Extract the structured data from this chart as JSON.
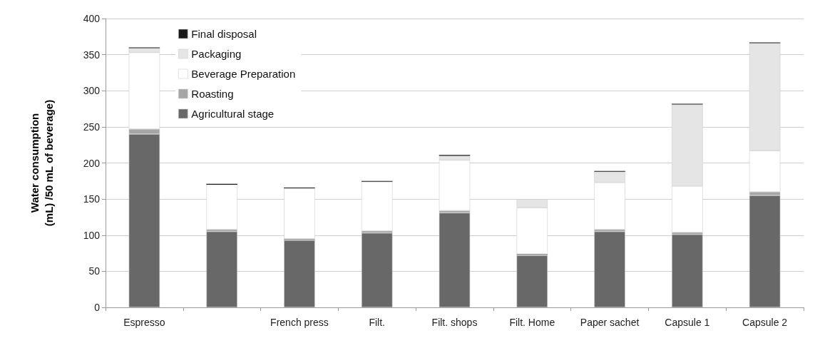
{
  "chart_data": {
    "type": "bar",
    "stacked": true,
    "ylabel": "Water consumption\n(mL) /50 mL of beverage)",
    "categories": [
      "Espresso",
      null,
      "French press",
      "Filt.",
      "Filt. shops",
      "Filt. Home",
      "Paper sachet",
      "Capsule 1",
      "Capsule 2"
    ],
    "series": [
      {
        "name": "Agricultural stage",
        "color": "#686868",
        "values": [
          240,
          105,
          93,
          103,
          131,
          72,
          105,
          101,
          155
        ]
      },
      {
        "name": "Roasting",
        "color": "#a6a6a6",
        "values": [
          7,
          3,
          2,
          3,
          3,
          2,
          3,
          3,
          5
        ]
      },
      {
        "name": "Beverage Preparation",
        "color": "#ffffff",
        "values": [
          106,
          62,
          70,
          68,
          70,
          64,
          65,
          64,
          57
        ]
      },
      {
        "name": "Packaging",
        "color": "#e5e5e5",
        "values": [
          6,
          0,
          0,
          0,
          6,
          12,
          15,
          113,
          149
        ]
      },
      {
        "name": "Final disposal",
        "color": "#1a1a1a",
        "values": [
          1,
          1,
          1,
          1,
          1,
          0,
          1,
          1,
          1
        ]
      }
    ],
    "ylim": [
      0,
      400
    ],
    "yticks": [
      0,
      50,
      100,
      150,
      200,
      250,
      300,
      350,
      400
    ],
    "grid": "y",
    "legend": "top left"
  }
}
